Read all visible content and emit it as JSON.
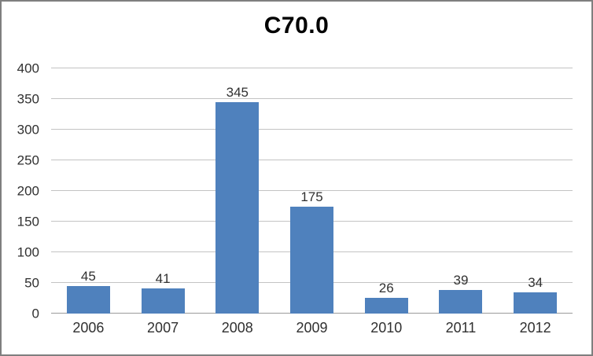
{
  "chart_data": {
    "type": "bar",
    "title": "C70.0",
    "categories": [
      "2006",
      "2007",
      "2008",
      "2009",
      "2010",
      "2011",
      "2012"
    ],
    "values": [
      45,
      41,
      345,
      175,
      26,
      39,
      34
    ],
    "data_labels": [
      "45",
      "41",
      "345",
      "175",
      "26",
      "39",
      "34"
    ],
    "xlabel": "",
    "ylabel": "",
    "ylim": [
      0,
      400
    ],
    "ytick_step": 50,
    "ytick_labels": [
      "0",
      "50",
      "100",
      "150",
      "200",
      "250",
      "300",
      "350",
      "400"
    ],
    "grid": true,
    "legend_visible": false,
    "bar_color": "#4F81BD",
    "gridline_color": "#C3C3C3",
    "axis_line_color": "#9B9B9B",
    "frame_border_color": "#7F7F7F",
    "background_color": "#FFFFFF",
    "title_color": "#000000",
    "label_color": "#303030"
  }
}
